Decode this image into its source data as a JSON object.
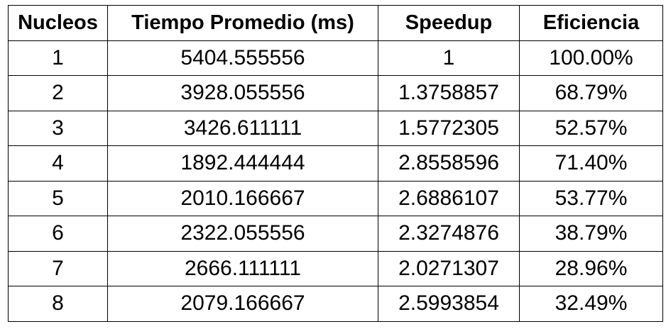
{
  "table": {
    "headers": [
      "Nucleos",
      "Tiempo Promedio (ms)",
      "Speedup",
      "Eficiencia"
    ],
    "rows": [
      [
        "1",
        "5404.555556",
        "1",
        "100.00%"
      ],
      [
        "2",
        "3928.055556",
        "1.3758857",
        "68.79%"
      ],
      [
        "3",
        "3426.611111",
        "1.5772305",
        "52.57%"
      ],
      [
        "4",
        "1892.444444",
        "2.8558596",
        "71.40%"
      ],
      [
        "5",
        "2010.166667",
        "2.6886107",
        "53.77%"
      ],
      [
        "6",
        "2322.055556",
        "2.3274876",
        "38.79%"
      ],
      [
        "7",
        "2666.111111",
        "2.0271307",
        "28.96%"
      ],
      [
        "8",
        "2079.166667",
        "2.5993854",
        "32.49%"
      ]
    ]
  }
}
